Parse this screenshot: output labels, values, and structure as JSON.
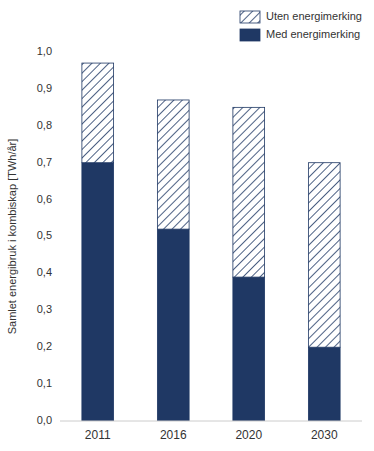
{
  "chart_data": {
    "type": "bar",
    "stacked": true,
    "categories": [
      "2011",
      "2016",
      "2020",
      "2030"
    ],
    "series": [
      {
        "name": "Med energimerking",
        "color": "#1F3864",
        "values": [
          0.7,
          0.52,
          0.39,
          0.2
        ]
      },
      {
        "name": "Uten energimerking",
        "color": "#1F3864",
        "values": [
          0.27,
          0.35,
          0.46,
          0.5
        ]
      }
    ],
    "ylabel": "Samlet energibruk i kombiskap [TWh/år]",
    "ylim": [
      0.0,
      1.0
    ],
    "yticks": [
      {
        "value": 0.0,
        "label": "0,0"
      },
      {
        "value": 0.1,
        "label": "0,1"
      },
      {
        "value": 0.2,
        "label": "0,2"
      },
      {
        "value": 0.3,
        "label": "0,3"
      },
      {
        "value": 0.4,
        "label": "0,4"
      },
      {
        "value": 0.5,
        "label": "0,5"
      },
      {
        "value": 0.6,
        "label": "0,6"
      },
      {
        "value": 0.7,
        "label": "0,7"
      },
      {
        "value": 0.8,
        "label": "0,8"
      },
      {
        "value": 0.9,
        "label": "0,9"
      },
      {
        "value": 1.0,
        "label": "1,0"
      }
    ],
    "grid": false,
    "legend": "upper right"
  }
}
